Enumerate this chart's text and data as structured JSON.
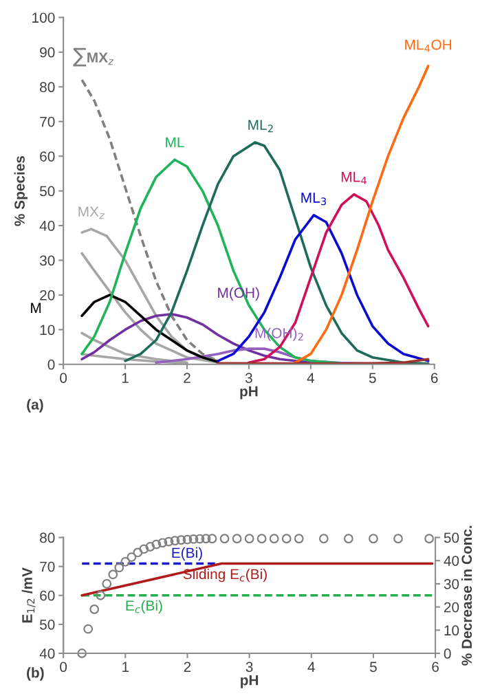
{
  "chart_data": [
    {
      "type": "line",
      "xlabel": "pH",
      "ylabel": "% Species",
      "xlim": [
        0,
        6
      ],
      "xticks": [
        0,
        1,
        2,
        3,
        4,
        5,
        6
      ],
      "ylim": [
        0,
        100
      ],
      "yticks": [
        0,
        10,
        20,
        30,
        40,
        50,
        60,
        70,
        80,
        90,
        100
      ],
      "grid": false,
      "legend": false,
      "marker": "none",
      "annotations": [
        "(a)"
      ],
      "series": [
        {
          "name": "∑MX$_{z}$",
          "color": "#7f7f7f",
          "line_style": "dashed",
          "x": [
            0.3,
            0.5,
            0.75,
            1.0,
            1.25,
            1.5,
            1.75,
            2.0,
            2.25,
            2.5
          ],
          "values": [
            82,
            76,
            65,
            51,
            37,
            24,
            14,
            7,
            3,
            1
          ]
        },
        {
          "name": "MX$_{z}$",
          "color": "#a6a6a6",
          "x": [
            0.3,
            0.45,
            0.7,
            1.0,
            1.25,
            1.5,
            1.75,
            2.0,
            2.25,
            2.5
          ],
          "values": [
            38,
            39,
            37,
            30,
            22,
            14,
            8,
            4,
            2,
            1
          ]
        },
        {
          "color": "#a6a6a6",
          "x": [
            0.3,
            0.5,
            0.75,
            1.0,
            1.25,
            1.5,
            2.0,
            2.5
          ],
          "values": [
            32,
            27,
            21,
            15,
            10,
            6,
            2,
            0.5
          ]
        },
        {
          "color": "#a6a6a6",
          "x": [
            0.3,
            0.5,
            0.75,
            1.0,
            1.5,
            2.0
          ],
          "values": [
            9,
            7,
            5,
            3,
            1.5,
            0.5
          ]
        },
        {
          "color": "#a6a6a6",
          "x": [
            0.3,
            0.5,
            1.0,
            1.5,
            2.0
          ],
          "values": [
            3,
            2.5,
            1.5,
            0.8,
            0.3
          ]
        },
        {
          "name": "M(OH)",
          "color": "#7030a0",
          "x": [
            0.3,
            0.5,
            0.75,
            1.0,
            1.25,
            1.5,
            1.75,
            2.0,
            2.25,
            2.5,
            2.75,
            3.0,
            3.25,
            3.5,
            4.0,
            5.0,
            5.9
          ],
          "values": [
            1.5,
            3.5,
            7,
            10,
            12.5,
            14,
            14.5,
            13.5,
            11.5,
            8.5,
            6,
            4,
            2.5,
            1.5,
            0.5,
            0.1,
            0.1
          ]
        },
        {
          "name": "M(OH)$_{2}$",
          "color": "#9460c0",
          "x": [
            1.5,
            2.0,
            2.5,
            2.75,
            3.0,
            3.25,
            3.5,
            3.75,
            4.0,
            4.5,
            5.0,
            5.9
          ],
          "values": [
            0.5,
            1.5,
            3,
            4,
            4.5,
            4.5,
            3.5,
            2,
            1,
            0.4,
            0.2,
            0.1
          ]
        },
        {
          "name": "M",
          "color": "#000000",
          "x": [
            0.3,
            0.5,
            0.75,
            1.0,
            1.25,
            1.5,
            1.75,
            2.0,
            2.25,
            2.5
          ],
          "values": [
            14,
            18,
            20,
            18,
            14,
            10,
            7,
            4,
            2,
            0.7
          ]
        },
        {
          "name": "ML",
          "color": "#1fb35a",
          "x": [
            0.3,
            0.5,
            0.75,
            1.0,
            1.25,
            1.5,
            1.8,
            2.0,
            2.25,
            2.5,
            2.75,
            3.0,
            3.25,
            3.5,
            3.75,
            4.0,
            4.5
          ],
          "values": [
            3,
            8,
            18,
            32,
            45,
            54,
            59,
            57,
            50,
            40,
            27,
            17,
            10,
            5,
            2,
            1,
            0.3
          ]
        },
        {
          "name": "ML$_{2}$",
          "color": "#1f6b5a",
          "x": [
            1.0,
            1.25,
            1.5,
            1.75,
            2.0,
            2.25,
            2.5,
            2.75,
            3.1,
            3.25,
            3.5,
            3.75,
            4.0,
            4.25,
            4.5,
            4.75,
            5.0,
            5.5,
            5.9
          ],
          "values": [
            1,
            3,
            7,
            15,
            27,
            40,
            52,
            60,
            64,
            63,
            56,
            42,
            28,
            17,
            9,
            4,
            2,
            0.5,
            0.2
          ]
        },
        {
          "name": "ML$_{3}$",
          "color": "#0a0ad0",
          "x": [
            2.5,
            2.75,
            3.0,
            3.25,
            3.5,
            3.75,
            4.05,
            4.25,
            4.5,
            4.75,
            5.0,
            5.25,
            5.5,
            5.9
          ],
          "values": [
            1,
            3,
            8,
            15,
            25,
            36,
            43,
            41,
            32,
            20,
            11,
            6,
            3,
            1
          ]
        },
        {
          "name": "ML$_{4}$",
          "color": "#d0105a",
          "x": [
            3.0,
            3.25,
            3.5,
            3.75,
            4.0,
            4.25,
            4.5,
            4.7,
            4.9,
            5.1,
            5.25,
            5.5,
            5.75,
            5.9
          ],
          "values": [
            0.5,
            1.5,
            5,
            12,
            25,
            38,
            46,
            49,
            47,
            40,
            33,
            25,
            16,
            11
          ]
        },
        {
          "name": "ML$_{4}$OH",
          "color": "#ff6a10",
          "x": [
            3.75,
            4.0,
            4.25,
            4.5,
            4.75,
            5.0,
            5.25,
            5.5,
            5.75,
            5.9
          ],
          "values": [
            0.5,
            3,
            10,
            20,
            33,
            47,
            60,
            71,
            80,
            86
          ]
        },
        {
          "color": "#a0302d",
          "x": [
            2.5,
            3.0,
            4.0,
            5.0,
            5.5,
            5.9
          ],
          "values": [
            0.3,
            0.3,
            0.2,
            0.3,
            0.5,
            1.5
          ]
        }
      ]
    },
    {
      "type": "line",
      "xlabel": "pH",
      "ylabel": "E$_{1/2}$ /mV",
      "y2label": "% Decrease in Conc.",
      "xlim": [
        0,
        6
      ],
      "xticks": [
        0,
        1,
        2,
        3,
        4,
        5,
        6
      ],
      "ylim": [
        40,
        80
      ],
      "yticks": [
        40,
        50,
        60,
        70,
        80
      ],
      "y2lim": [
        0,
        50
      ],
      "y2ticks": [
        0,
        10,
        20,
        30,
        40,
        50
      ],
      "grid": false,
      "legend": false,
      "annotations": [
        "(b)"
      ],
      "series": [
        {
          "type": "scatter",
          "axis": "y2",
          "marker": "circle",
          "color": "#808080",
          "x": [
            0.3,
            0.4,
            0.5,
            0.6,
            0.7,
            0.8,
            0.9,
            1.0,
            1.1,
            1.2,
            1.3,
            1.4,
            1.5,
            1.6,
            1.7,
            1.8,
            1.9,
            2.0,
            2.1,
            2.2,
            2.3,
            2.4,
            2.6,
            2.8,
            3.0,
            3.2,
            3.4,
            3.6,
            3.8,
            4.2,
            4.6,
            5.0,
            5.4,
            5.9
          ],
          "values": [
            0,
            10.5,
            19,
            25,
            30,
            34,
            37,
            39.5,
            41.5,
            43.5,
            45,
            46,
            47,
            47.7,
            48.2,
            48.6,
            48.9,
            49.1,
            49.3,
            49.4,
            49.5,
            49.5,
            49.5,
            49.5,
            49.5,
            49.5,
            49.5,
            49.5,
            49.5,
            49.5,
            49.5,
            49.5,
            49.5,
            49.5
          ]
        },
        {
          "name": "E(Bi)",
          "color": "#1a1acc",
          "line_style": "dashed",
          "x": [
            0.3,
            2.45
          ],
          "values": [
            71,
            71
          ]
        },
        {
          "name": "E$_{c}$(Bi)",
          "color": "#22b04a",
          "line_style": "dashed",
          "x": [
            0.3,
            5.95
          ],
          "values": [
            60,
            60
          ]
        },
        {
          "name": "Sliding E$_{c}$(Bi)",
          "color": "#b01c1c",
          "x": [
            0.3,
            2.55,
            5.95
          ],
          "values": [
            60,
            71,
            71
          ]
        }
      ]
    }
  ]
}
